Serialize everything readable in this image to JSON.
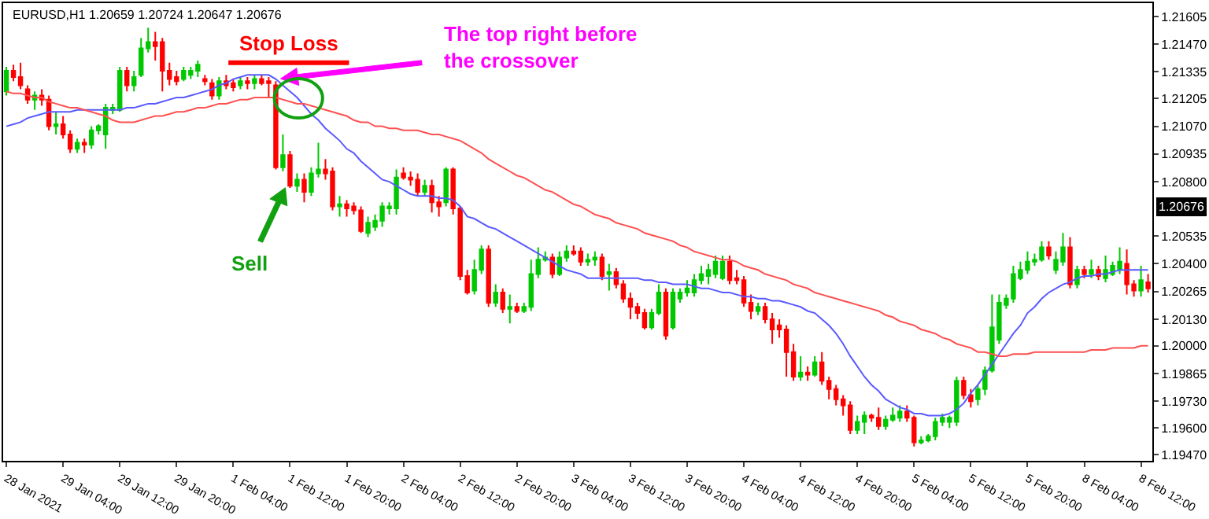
{
  "chart_data": {
    "type": "candlestick",
    "title": "EURUSD,H1 1.20659 1.20724 1.20647 1.20676",
    "categories": [
      "28 Jan 2021",
      null,
      null,
      null,
      null,
      null,
      null,
      null,
      "29 Jan 04:00",
      null,
      null,
      null,
      null,
      null,
      null,
      null,
      "29 Jan 12:00",
      null,
      null,
      null,
      null,
      null,
      null,
      null,
      "29 Jan 20:00",
      null,
      null,
      null,
      null,
      null,
      null,
      null,
      "1 Feb 04:00",
      null,
      null,
      null,
      null,
      null,
      null,
      null,
      "1 Feb 12:00",
      null,
      null,
      null,
      null,
      null,
      null,
      null,
      "1 Feb 20:00",
      null,
      null,
      null,
      null,
      null,
      null,
      null,
      "2 Feb 04:00",
      null,
      null,
      null,
      null,
      null,
      null,
      null,
      "2 Feb 12:00",
      null,
      null,
      null,
      null,
      null,
      null,
      null,
      "2 Feb 20:00",
      null,
      null,
      null,
      null,
      null,
      null,
      null,
      "3 Feb 04:00",
      null,
      null,
      null,
      null,
      null,
      null,
      null,
      "3 Feb 12:00",
      null,
      null,
      null,
      null,
      null,
      null,
      null,
      "3 Feb 20:00",
      null,
      null,
      null,
      null,
      null,
      null,
      null,
      "4 Feb 04:00",
      null,
      null,
      null,
      null,
      null,
      null,
      null,
      "4 Feb 12:00",
      null,
      null,
      null,
      null,
      null,
      null,
      null,
      "4 Feb 20:00",
      null,
      null,
      null,
      null,
      null,
      null,
      null,
      "5 Feb 04:00",
      null,
      null,
      null,
      null,
      null,
      null,
      null,
      "5 Feb 12:00",
      null,
      null,
      null,
      null,
      null,
      null,
      null,
      "5 Feb 20:00",
      null,
      null,
      null,
      null,
      null,
      null,
      null,
      "8 Feb 04:00",
      null,
      null,
      null,
      null,
      null,
      null,
      null,
      "8 Feb 12:00",
      null
    ],
    "ohlc": [
      [
        1.2124,
        1.2136,
        1.2122,
        1.2134
      ],
      [
        1.2134,
        1.2137,
        1.2129,
        1.2131
      ],
      [
        1.2131,
        1.2138,
        1.2125,
        1.2127
      ],
      [
        1.2125,
        1.2127,
        1.2118,
        1.212
      ],
      [
        1.212,
        1.2124,
        1.2115,
        1.2122
      ],
      [
        1.2122,
        1.2125,
        1.2117,
        1.212
      ],
      [
        1.212,
        1.2122,
        1.2105,
        1.2107
      ],
      [
        1.2107,
        1.2114,
        1.2103,
        1.2108
      ],
      [
        1.2108,
        1.2112,
        1.2101,
        1.2103
      ],
      [
        1.2103,
        1.2105,
        1.2094,
        1.2096
      ],
      [
        1.2096,
        1.2101,
        1.2094,
        1.2099
      ],
      [
        1.2099,
        1.2101,
        1.2094,
        1.2098
      ],
      [
        1.2098,
        1.2107,
        1.2096,
        1.2105
      ],
      [
        1.2105,
        1.2108,
        1.2103,
        1.2107
      ],
      [
        1.2103,
        1.2118,
        1.2096,
        1.2116
      ],
      [
        1.2115,
        1.2118,
        1.2113,
        1.2116
      ],
      [
        1.2115,
        1.2136,
        1.2114,
        1.2134
      ],
      [
        1.2134,
        1.2136,
        1.2124,
        1.2127
      ],
      [
        1.2127,
        1.2134,
        1.2124,
        1.2131
      ],
      [
        1.2132,
        1.215,
        1.2131,
        1.2145
      ],
      [
        1.2145,
        1.2155,
        1.2143,
        1.2148
      ],
      [
        1.2148,
        1.2153,
        1.2139,
        1.2146
      ],
      [
        1.2148,
        1.215,
        1.2124,
        1.2134
      ],
      [
        1.2134,
        1.2138,
        1.2127,
        1.213
      ],
      [
        1.2131,
        1.2134,
        1.2127,
        1.2129
      ],
      [
        1.213,
        1.2136,
        1.2129,
        1.2134
      ],
      [
        1.2132,
        1.2136,
        1.213,
        1.2134
      ],
      [
        1.2134,
        1.2139,
        1.2131,
        1.2137
      ],
      [
        1.213,
        1.2132,
        1.2127,
        1.2129
      ],
      [
        1.2128,
        1.213,
        1.212,
        1.2122
      ],
      [
        1.2122,
        1.2131,
        1.212,
        1.2129
      ],
      [
        1.2129,
        1.2132,
        1.2125,
        1.2127
      ],
      [
        1.2128,
        1.213,
        1.2124,
        1.2126
      ],
      [
        1.2127,
        1.2131,
        1.2125,
        1.2129
      ],
      [
        1.2129,
        1.2131,
        1.2125,
        1.2128
      ],
      [
        1.2128,
        1.2132,
        1.2125,
        1.213
      ],
      [
        1.213,
        1.2132,
        1.2127,
        1.2128
      ],
      [
        1.2129,
        1.2131,
        1.2121,
        1.2128
      ],
      [
        1.2127,
        1.2129,
        1.2086,
        1.2087
      ],
      [
        1.2087,
        1.2103,
        1.2085,
        1.2093
      ],
      [
        1.2093,
        1.2095,
        1.2077,
        1.2078
      ],
      [
        1.2078,
        1.2084,
        1.2075,
        1.2081
      ],
      [
        1.2081,
        1.2084,
        1.207,
        1.2075
      ],
      [
        1.2075,
        1.2087,
        1.2073,
        1.2084
      ],
      [
        1.2084,
        1.2099,
        1.2082,
        1.2086
      ],
      [
        1.2086,
        1.2091,
        1.2081,
        1.2084
      ],
      [
        1.2085,
        1.2087,
        1.2066,
        1.2068
      ],
      [
        1.2068,
        1.2073,
        1.2063,
        1.2069
      ],
      [
        1.2069,
        1.2071,
        1.2063,
        1.2067
      ],
      [
        1.2068,
        1.207,
        1.2064,
        1.2066
      ],
      [
        1.2066,
        1.2068,
        1.2055,
        1.2056
      ],
      [
        1.2055,
        1.2063,
        1.2053,
        1.206
      ],
      [
        1.2058,
        1.2064,
        1.2056,
        1.2061
      ],
      [
        1.2061,
        1.207,
        1.2058,
        1.2068
      ],
      [
        1.2067,
        1.207,
        1.2064,
        1.2068
      ],
      [
        1.2067,
        1.2086,
        1.2064,
        1.2082
      ],
      [
        1.2084,
        1.2087,
        1.2081,
        1.2082
      ],
      [
        1.2082,
        1.2085,
        1.2078,
        1.2081
      ],
      [
        1.2081,
        1.2084,
        1.2073,
        1.2075
      ],
      [
        1.2075,
        1.2081,
        1.2073,
        1.2078
      ],
      [
        1.2078,
        1.2081,
        1.2065,
        1.207
      ],
      [
        1.207,
        1.2073,
        1.2063,
        1.2068
      ],
      [
        1.207,
        1.2087,
        1.2068,
        1.2086
      ],
      [
        1.2086,
        1.2087,
        1.2064,
        1.2067
      ],
      [
        1.2067,
        1.2068,
        1.2032,
        1.2034
      ],
      [
        1.2034,
        1.2037,
        1.2025,
        1.2026
      ],
      [
        1.2027,
        1.2042,
        1.2025,
        1.2037
      ],
      [
        1.2037,
        1.2049,
        1.2035,
        1.2047
      ],
      [
        1.2047,
        1.2049,
        1.2019,
        1.2021
      ],
      [
        1.2021,
        1.203,
        1.2019,
        1.2026
      ],
      [
        1.2026,
        1.2028,
        1.2016,
        1.2018
      ],
      [
        1.2018,
        1.2025,
        1.2011,
        1.2019
      ],
      [
        1.2019,
        1.2021,
        1.2016,
        1.2017
      ],
      [
        1.2017,
        1.2021,
        1.2016,
        1.2019
      ],
      [
        1.2019,
        1.2042,
        1.2017,
        1.2035
      ],
      [
        1.2035,
        1.2048,
        1.2033,
        1.2042
      ],
      [
        1.2042,
        1.2046,
        1.2041,
        1.2043
      ],
      [
        1.2043,
        1.2045,
        1.2033,
        1.2035
      ],
      [
        1.2035,
        1.2046,
        1.2034,
        1.2043
      ],
      [
        1.2043,
        1.2049,
        1.2041,
        1.2046
      ],
      [
        1.2046,
        1.2049,
        1.2044,
        1.2045
      ],
      [
        1.2046,
        1.2048,
        1.2039,
        1.2041
      ],
      [
        1.2041,
        1.2045,
        1.2039,
        1.2042
      ],
      [
        1.2042,
        1.2046,
        1.2039,
        1.2043
      ],
      [
        1.2043,
        1.2045,
        1.2032,
        1.2034
      ],
      [
        1.2035,
        1.204,
        1.2027,
        1.2036
      ],
      [
        1.2036,
        1.2038,
        1.2028,
        1.203
      ],
      [
        1.203,
        1.2032,
        1.2021,
        1.2023
      ],
      [
        1.2023,
        1.2026,
        1.2013,
        1.2019
      ],
      [
        1.2019,
        1.2021,
        1.2013,
        1.2016
      ],
      [
        1.2016,
        1.2018,
        1.2008,
        1.2009
      ],
      [
        1.2009,
        1.2018,
        1.2008,
        1.2016
      ],
      [
        1.2016,
        1.203,
        1.2015,
        1.2026
      ],
      [
        1.2026,
        1.2028,
        1.2003,
        1.2005
      ],
      [
        1.2009,
        1.2028,
        1.2008,
        1.2026
      ],
      [
        1.2023,
        1.2028,
        1.2021,
        1.2026
      ],
      [
        1.2026,
        1.2032,
        1.2024,
        1.2028
      ],
      [
        1.2026,
        1.2035,
        1.2024,
        1.2032
      ],
      [
        1.2032,
        1.2039,
        1.203,
        1.2035
      ],
      [
        1.2034,
        1.204,
        1.203,
        1.2037
      ],
      [
        1.2035,
        1.2044,
        1.2033,
        1.2041
      ],
      [
        1.2033,
        1.2044,
        1.2032,
        1.2041
      ],
      [
        1.2041,
        1.2044,
        1.203,
        1.2032
      ],
      [
        1.2033,
        1.2037,
        1.203,
        1.2032
      ],
      [
        1.2032,
        1.2034,
        1.2019,
        1.2021
      ],
      [
        1.2021,
        1.2025,
        1.2013,
        1.2017
      ],
      [
        1.2017,
        1.2021,
        1.2015,
        1.2019
      ],
      [
        1.2019,
        1.2021,
        1.2011,
        1.2013
      ],
      [
        1.2013,
        1.2016,
        1.2001,
        1.2008
      ],
      [
        1.201,
        1.2013,
        1.2004,
        1.2008
      ],
      [
        1.2008,
        1.201,
        1.1985,
        1.1997
      ],
      [
        1.1997,
        1.2001,
        1.1983,
        1.1985
      ],
      [
        1.1985,
        1.1995,
        1.1983,
        1.1987
      ],
      [
        1.1987,
        1.199,
        1.1983,
        1.1986
      ],
      [
        1.1986,
        1.1995,
        1.1985,
        1.1992
      ],
      [
        1.1992,
        1.1997,
        1.1981,
        1.1983
      ],
      [
        1.1983,
        1.1985,
        1.1974,
        1.1979
      ],
      [
        1.1979,
        1.1981,
        1.1971,
        1.1974
      ],
      [
        1.1974,
        1.1976,
        1.1966,
        1.1971
      ],
      [
        1.1971,
        1.1973,
        1.1957,
        1.1959
      ],
      [
        1.1959,
        1.1966,
        1.1957,
        1.1963
      ],
      [
        1.1963,
        1.1968,
        1.1957,
        1.1966
      ],
      [
        1.1966,
        1.1967,
        1.1963,
        1.1965
      ],
      [
        1.1965,
        1.197,
        1.1959,
        1.1961
      ],
      [
        1.1961,
        1.1966,
        1.1959,
        1.1964
      ],
      [
        1.1964,
        1.197,
        1.1963,
        1.1966
      ],
      [
        1.1965,
        1.1971,
        1.1963,
        1.1968
      ],
      [
        1.1968,
        1.1971,
        1.1963,
        1.1965
      ],
      [
        1.1965,
        1.1966,
        1.1951,
        1.1953
      ],
      [
        1.1953,
        1.1956,
        1.1952,
        1.1954
      ],
      [
        1.1954,
        1.1957,
        1.1953,
        1.1956
      ],
      [
        1.1956,
        1.1965,
        1.1954,
        1.1963
      ],
      [
        1.1963,
        1.1967,
        1.1961,
        1.1965
      ],
      [
        1.1963,
        1.1966,
        1.196,
        1.1965
      ],
      [
        1.1963,
        1.1985,
        1.1961,
        1.1983
      ],
      [
        1.1983,
        1.1985,
        1.1974,
        1.1976
      ],
      [
        1.1976,
        1.1979,
        1.197,
        1.1973
      ],
      [
        1.1974,
        1.1981,
        1.1971,
        1.1979
      ],
      [
        1.1979,
        1.199,
        1.1976,
        1.1988
      ],
      [
        1.1988,
        1.2025,
        1.1987,
        1.2009
      ],
      [
        1.2003,
        1.2025,
        1.2001,
        1.2021
      ],
      [
        1.202,
        1.2025,
        1.2018,
        1.2023
      ],
      [
        1.2023,
        1.2039,
        1.2021,
        1.2035
      ],
      [
        1.2033,
        1.2041,
        1.2032,
        1.2037
      ],
      [
        1.2037,
        1.2046,
        1.2035,
        1.2041
      ],
      [
        1.2041,
        1.2045,
        1.2039,
        1.2042
      ],
      [
        1.2042,
        1.2051,
        1.2041,
        1.2048
      ],
      [
        1.2048,
        1.2051,
        1.2042,
        1.2044
      ],
      [
        1.2037,
        1.2046,
        1.2035,
        1.2042
      ],
      [
        1.2041,
        1.2055,
        1.2039,
        1.2048
      ],
      [
        1.2048,
        1.2053,
        1.2028,
        1.203
      ],
      [
        1.203,
        1.2039,
        1.2028,
        1.2037
      ],
      [
        1.2037,
        1.2039,
        1.2033,
        1.2035
      ],
      [
        1.2035,
        1.2042,
        1.2033,
        1.2037
      ],
      [
        1.2037,
        1.2039,
        1.2032,
        1.2034
      ],
      [
        1.2033,
        1.2044,
        1.2031,
        1.2037
      ],
      [
        1.2035,
        1.2041,
        1.2034,
        1.2039
      ],
      [
        1.2037,
        1.2048,
        1.2035,
        1.2041
      ],
      [
        1.204,
        1.2047,
        1.2025,
        1.203
      ],
      [
        1.203,
        1.2032,
        1.2024,
        1.2027
      ],
      [
        1.2027,
        1.2039,
        1.2024,
        1.2032
      ],
      [
        1.2031,
        1.2035,
        1.2026,
        1.2028
      ]
    ],
    "series": [
      {
        "type": "line",
        "color": "#5a5aff",
        "values": [
          1.2107,
          1.2108,
          1.2109,
          1.2111,
          1.2112,
          1.2113,
          1.2114,
          1.2114,
          1.2114,
          1.2114,
          1.2115,
          1.2115,
          1.2115,
          1.2115,
          1.2115,
          1.2115,
          1.2115,
          1.2116,
          1.2116,
          1.2117,
          1.2118,
          1.2118,
          1.2119,
          1.212,
          1.2121,
          1.2121,
          1.2122,
          1.2123,
          1.2124,
          1.2125,
          1.2127,
          1.2128,
          1.213,
          1.2131,
          1.2132,
          1.2132,
          1.2132,
          1.2132,
          1.213,
          1.2127,
          1.2124,
          1.2121,
          1.2117,
          1.2113,
          1.211,
          1.2106,
          1.2103,
          1.21,
          1.2096,
          1.2094,
          1.209,
          1.2087,
          1.2084,
          1.2081,
          1.208,
          1.2078,
          1.2076,
          1.2074,
          1.2073,
          1.2073,
          1.2073,
          1.2072,
          1.2072,
          1.2071,
          1.2068,
          1.2063,
          1.2062,
          1.206,
          1.2058,
          1.2057,
          1.2055,
          1.2053,
          1.2051,
          1.2049,
          1.2047,
          1.2045,
          1.2043,
          1.2041,
          1.2039,
          1.2037,
          1.2036,
          1.2035,
          1.2033,
          1.2033,
          1.2033,
          1.2033,
          1.2033,
          1.2033,
          1.2033,
          1.2033,
          1.2032,
          1.2032,
          1.2031,
          1.2031,
          1.203,
          1.203,
          1.203,
          1.2029,
          1.2028,
          1.2028,
          1.2027,
          1.2026,
          1.2026,
          1.2025,
          1.2024,
          1.2024,
          1.2023,
          1.2023,
          1.2022,
          1.2022,
          1.2021,
          1.202,
          1.2019,
          1.2017,
          1.2016,
          1.2013,
          1.201,
          1.2006,
          1.2001,
          1.1995,
          1.199,
          1.1985,
          1.1981,
          1.1978,
          1.1974,
          1.1972,
          1.197,
          1.1969,
          1.1967,
          1.1967,
          1.1966,
          1.1966,
          1.1966,
          1.1967,
          1.1969,
          1.1972,
          1.1977,
          1.1981,
          1.1986,
          1.1991,
          1.1996,
          1.2001,
          1.2006,
          1.201,
          1.2016,
          1.2019,
          1.2023,
          1.2026,
          1.2028,
          1.203,
          1.2031,
          1.2033,
          1.2034,
          1.2034,
          1.2035,
          1.2035,
          1.2036,
          1.2037,
          1.2037,
          1.2037,
          1.2037,
          1.2037
        ]
      },
      {
        "type": "line",
        "color": "#ff5050",
        "values": [
          1.2124,
          1.2123,
          1.2123,
          1.2122,
          1.2121,
          1.2121,
          1.2119,
          1.2118,
          1.2117,
          1.2116,
          1.2116,
          1.2115,
          1.2114,
          1.2113,
          1.2112,
          1.211,
          1.2109,
          1.2109,
          1.2109,
          1.211,
          1.2111,
          1.2112,
          1.2112,
          1.2113,
          1.2114,
          1.2114,
          1.2115,
          1.2116,
          1.2116,
          1.2117,
          1.2118,
          1.2118,
          1.2119,
          1.212,
          1.212,
          1.2121,
          1.2121,
          1.2121,
          1.2121,
          1.212,
          1.2119,
          1.2118,
          1.2118,
          1.2117,
          1.2116,
          1.2115,
          1.2114,
          1.2113,
          1.2112,
          1.211,
          1.2109,
          1.2109,
          1.2107,
          1.2107,
          1.2106,
          1.2106,
          1.2105,
          1.2105,
          1.2105,
          1.2104,
          1.2103,
          1.2103,
          1.2102,
          1.2101,
          1.21,
          1.2098,
          1.2096,
          1.2094,
          1.2091,
          1.2089,
          1.2087,
          1.2085,
          1.2083,
          1.2082,
          1.208,
          1.2078,
          1.2076,
          1.2075,
          1.2073,
          1.2071,
          1.2069,
          1.2068,
          1.2066,
          1.2064,
          1.2063,
          1.2062,
          1.206,
          1.2059,
          1.2058,
          1.2057,
          1.2055,
          1.2054,
          1.2053,
          1.2052,
          1.2051,
          1.2049,
          1.2048,
          1.2046,
          1.2045,
          1.2044,
          1.2043,
          1.2042,
          1.2042,
          1.2041,
          1.2039,
          1.2038,
          1.2037,
          1.2035,
          1.2034,
          1.2033,
          1.2032,
          1.203,
          1.2029,
          1.2028,
          1.2026,
          1.2025,
          1.2024,
          1.2023,
          1.2022,
          1.2021,
          1.202,
          1.2019,
          1.2018,
          1.2017,
          1.2015,
          1.2014,
          1.2012,
          1.2011,
          1.201,
          1.2008,
          1.2007,
          1.2006,
          1.2004,
          1.2003,
          1.2001,
          1.2,
          1.1999,
          1.1997,
          1.1997,
          1.1996,
          1.1995,
          1.1995,
          1.1996,
          1.1996,
          1.1996,
          1.1997,
          1.1997,
          1.1997,
          1.1997,
          1.1997,
          1.1997,
          1.1997,
          1.1997,
          1.1998,
          1.1998,
          1.1998,
          1.1999,
          1.1999,
          1.1999,
          1.1999,
          1.2,
          1.2
        ]
      }
    ],
    "ylim": [
      1.1944,
      1.2167
    ],
    "yticks": [
      1.21605,
      {
        "value": 1.2147,
        "label": "1.21470"
      },
      1.21335,
      1.21205,
      {
        "value": 1.2107,
        "label": "1.21070"
      },
      1.20935,
      {
        "value": 1.208,
        "label": "1.20800"
      },
      1.20535,
      {
        "value": 1.204,
        "label": "1.20400"
      },
      1.20265,
      {
        "value": 1.2013,
        "label": "1.20130"
      },
      {
        "value": 1.2,
        "label": "1.20000"
      },
      1.19865,
      {
        "value": 1.1973,
        "label": "1.19730"
      },
      {
        "value": 1.196,
        "label": "1.19600"
      },
      {
        "value": 1.1947,
        "label": "1.19470"
      }
    ],
    "annotations": [
      "Stop Loss",
      "The top right before\nthe crossover",
      "Sell",
      {
        "text": "1.20676",
        "y": 1.20676
      }
    ]
  }
}
